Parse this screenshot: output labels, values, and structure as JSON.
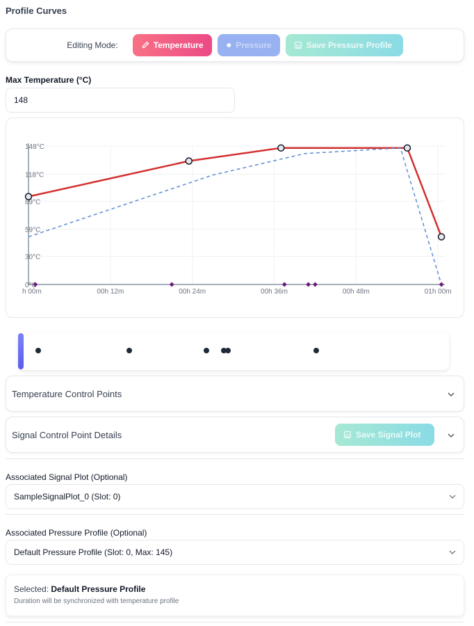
{
  "page_title": "Profile Curves",
  "editing_mode": {
    "label": "Editing Mode:",
    "temperature_label": "Temperature",
    "pressure_label": "Pressure",
    "save_label": "Save Pressure Profile",
    "colors": {
      "temperature": "#ec4a86",
      "pressure": "#98b2f1",
      "save": "#a6e8d3"
    }
  },
  "max_temperature": {
    "label": "Max Temperature (°C)",
    "value": "148"
  },
  "chart_data": {
    "type": "line",
    "x_unit": "minutes",
    "x_ticks": [
      {
        "value": 0,
        "label": "h 00m"
      },
      {
        "value": 12,
        "label": "00h 12m"
      },
      {
        "value": 24,
        "label": "00h 24m"
      },
      {
        "value": 36,
        "label": "00h 36m"
      },
      {
        "value": 48,
        "label": "00h 48m"
      },
      {
        "value": 60,
        "label": "01h 00m"
      }
    ],
    "y_ticks": [
      {
        "value": 0,
        "label": "0°C"
      },
      {
        "value": 30,
        "label": "30°C"
      },
      {
        "value": 59,
        "label": "59°C"
      },
      {
        "value": 89,
        "label": "89°C"
      },
      {
        "value": 118,
        "label": "118°C"
      },
      {
        "value": 148,
        "label": "148°C"
      }
    ],
    "xlim": [
      0,
      61
    ],
    "ylim": [
      0,
      148
    ],
    "grid": true,
    "series": [
      {
        "style": "solid",
        "color": "#d32f2f",
        "points": [
          [
            0,
            94
          ],
          [
            23.5,
            132
          ],
          [
            37,
            146
          ],
          [
            55.5,
            146
          ],
          [
            60.5,
            51
          ]
        ]
      },
      {
        "style": "dashed",
        "color": "#5b8bd6",
        "points": [
          [
            0,
            51
          ],
          [
            27,
            117
          ],
          [
            40.5,
            140
          ],
          [
            54.5,
            146
          ],
          [
            60.5,
            0
          ]
        ]
      }
    ],
    "markers": [
      1,
      21,
      37.5,
      41,
      42,
      60.5
    ],
    "marker_color": "#6b1d7a"
  },
  "signal_points": [
    1.5,
    22.5,
    40.5,
    44.5,
    45.5,
    66
  ],
  "accordions": {
    "temperature_points": "Temperature Control Points",
    "signal_details": "Signal Control Point Details",
    "save_signal_label": "Save Signal Plot"
  },
  "signal_plot": {
    "label": "Associated Signal Plot (Optional)",
    "value": "SampleSignalPlot_0 (Slot: 0)"
  },
  "pressure_profile": {
    "label": "Associated Pressure Profile (Optional)",
    "value": "Default Pressure Profile (Slot: 0, Max: 145)"
  },
  "selected": {
    "prefix": "Selected:",
    "name": "Default Pressure Profile",
    "note": "Duration will be synchronized with temperature profile"
  }
}
